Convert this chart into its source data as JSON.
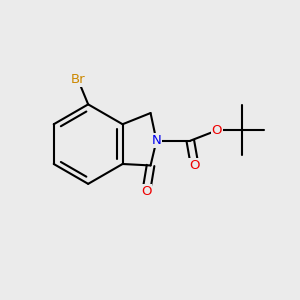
{
  "background_color": "#EBEBEB",
  "atom_colors": {
    "C": "#000000",
    "N": "#0000EE",
    "O": "#EE0000",
    "Br": "#CC8800"
  },
  "bond_color": "#000000",
  "bond_width": 1.5,
  "figsize": [
    3.0,
    3.0
  ],
  "dpi": 100,
  "xlim": [
    0,
    10
  ],
  "ylim": [
    0,
    10
  ]
}
